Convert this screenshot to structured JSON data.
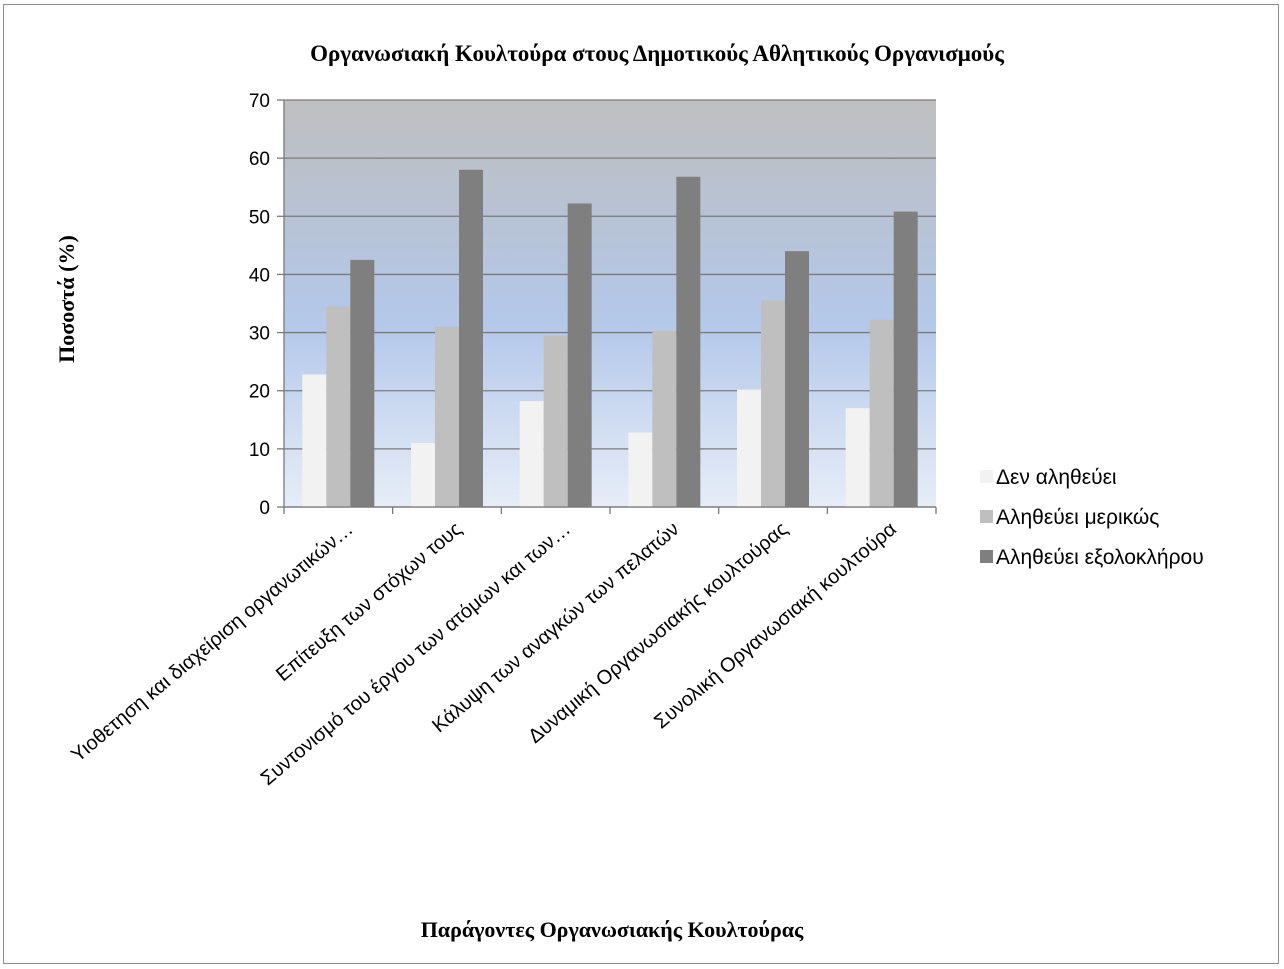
{
  "chart_data": {
    "type": "bar",
    "title": "Οργανωσιακή Κουλτούρα στους Δημοτικούς Αθλητικούς Οργανισμούς",
    "xlabel": "Παράγοντες Οργανωσιακής Κουλτούρας",
    "ylabel": "Ποσοστά  (%)",
    "ylim": [
      0,
      70
    ],
    "yticks": [
      0,
      10,
      20,
      30,
      40,
      50,
      60,
      70
    ],
    "grid": true,
    "legend_position": "right",
    "categories": [
      "Υιοθετηση και διαχείριση οργανωτικών…",
      "Επίτευξη των στόχων τους",
      "Συντονισμό του έργου των ατόμων και των…",
      "Κάλυψη των αναγκών των πελατών",
      "Δυναμική Οργανωσιακής κουλτούρας",
      "Συνολική Οργανωσιακή κουλτούρα"
    ],
    "series": [
      {
        "name": "Δεν αληθεύει",
        "color": "#f2f2f2",
        "values": [
          22.8,
          11.0,
          18.2,
          12.8,
          20.2,
          17.0
        ]
      },
      {
        "name": "Αληθεύει μερικώς",
        "color": "#bfbfbf",
        "values": [
          34.5,
          31.0,
          29.5,
          30.3,
          35.5,
          32.2
        ]
      },
      {
        "name": "Αληθεύει εξολοκλήρου",
        "color": "#7f7f7f",
        "values": [
          42.5,
          58.0,
          52.2,
          56.8,
          44.0,
          50.8
        ]
      }
    ]
  }
}
